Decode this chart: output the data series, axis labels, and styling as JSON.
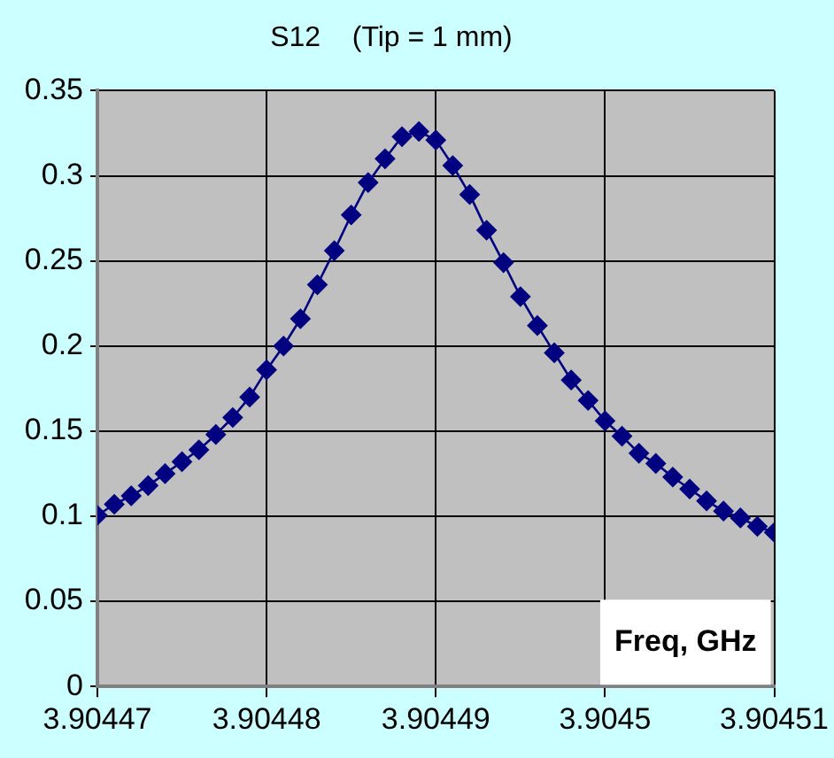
{
  "chart_data": {
    "type": "line",
    "title": "S12    (Tip = 1 mm)",
    "xlabel": "Freq, GHz",
    "x": [
      3.90447,
      3.904471,
      3.904472,
      3.904473,
      3.904474,
      3.904475,
      3.904476,
      3.904477,
      3.904478,
      3.904479,
      3.90448,
      3.904481,
      3.904482,
      3.904483,
      3.904484,
      3.904485,
      3.904486,
      3.904487,
      3.904488,
      3.904489,
      3.90449,
      3.904491,
      3.904492,
      3.904493,
      3.904494,
      3.904495,
      3.904496,
      3.904497,
      3.904498,
      3.904499,
      3.9045,
      3.904501,
      3.904502,
      3.904503,
      3.904504,
      3.904505,
      3.904506,
      3.904507,
      3.904508,
      3.904509,
      3.90451
    ],
    "series": [
      {
        "color": "#000080",
        "values": [
          0.1005,
          0.107,
          0.112,
          0.118,
          0.125,
          0.132,
          0.139,
          0.148,
          0.158,
          0.17,
          0.186,
          0.2,
          0.216,
          0.236,
          0.256,
          0.277,
          0.296,
          0.31,
          0.323,
          0.326,
          0.321,
          0.306,
          0.289,
          0.268,
          0.249,
          0.229,
          0.212,
          0.196,
          0.18,
          0.168,
          0.156,
          0.147,
          0.137,
          0.131,
          0.123,
          0.116,
          0.109,
          0.103,
          0.099,
          0.094,
          0.0905
        ]
      }
    ],
    "xlim": [
      3.90447,
      3.90451
    ],
    "xticks": [
      3.90447,
      3.90448,
      3.90449,
      3.9045,
      3.90451
    ],
    "ylim": [
      0,
      0.35
    ],
    "yticks": [
      0,
      0.05,
      0.1,
      0.15,
      0.2,
      0.25,
      0.3,
      0.35
    ],
    "grid": true,
    "legend": false,
    "marker": "diamond",
    "line_style": "solid"
  }
}
